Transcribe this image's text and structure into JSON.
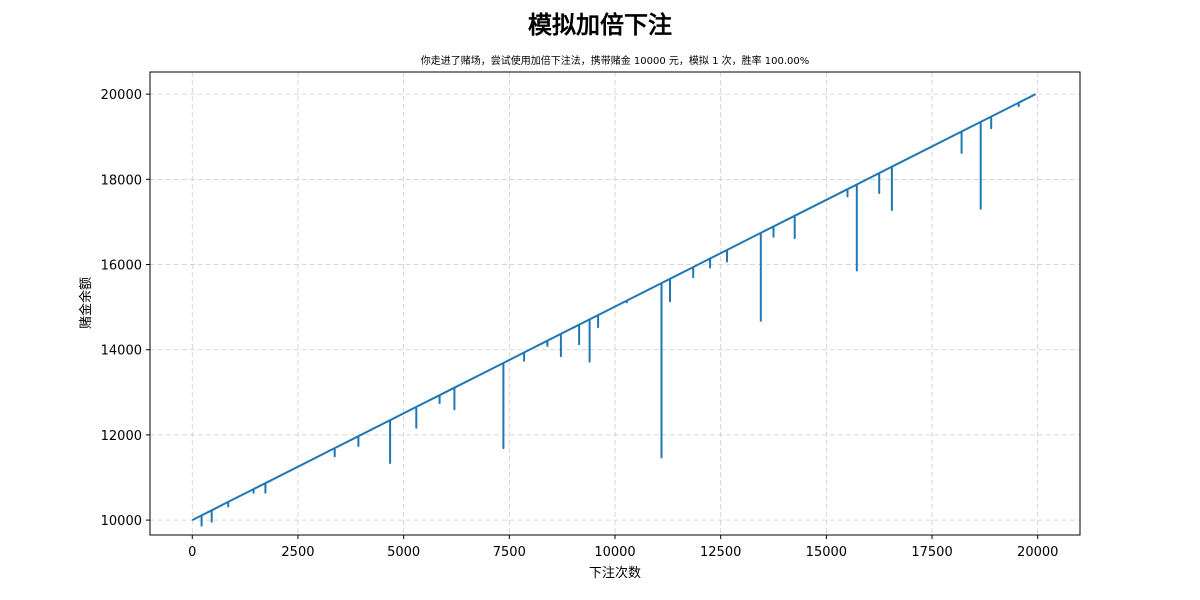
{
  "chart_data": {
    "type": "line",
    "title": "模拟加倍下注",
    "subtitle": "你走进了赌场，尝试使用加倍下注法，携带赌金 10000 元，模拟 1 次，胜率 100.00%",
    "xlabel": "下注次数",
    "ylabel": "赌金余额",
    "xlim": [
      -1000,
      21000
    ],
    "ylim": [
      9650,
      20520
    ],
    "x_ticks": [
      0,
      2500,
      5000,
      7500,
      10000,
      12500,
      15000,
      17500,
      20000
    ],
    "y_ticks": [
      10000,
      12000,
      14000,
      16000,
      18000,
      20000
    ],
    "grid": true,
    "series": [
      {
        "color": "#1f77b4",
        "trend": {
          "x": [
            0,
            19950
          ],
          "y": [
            10000,
            20000
          ]
        },
        "dips": [
          {
            "x": 220,
            "y": 9870
          },
          {
            "x": 460,
            "y": 9960
          },
          {
            "x": 850,
            "y": 10320
          },
          {
            "x": 1450,
            "y": 10640
          },
          {
            "x": 1730,
            "y": 10640
          },
          {
            "x": 3370,
            "y": 11500
          },
          {
            "x": 3930,
            "y": 11740
          },
          {
            "x": 4680,
            "y": 11340
          },
          {
            "x": 5300,
            "y": 12170
          },
          {
            "x": 5850,
            "y": 12750
          },
          {
            "x": 6200,
            "y": 12600
          },
          {
            "x": 7360,
            "y": 11690
          },
          {
            "x": 7850,
            "y": 13740
          },
          {
            "x": 8400,
            "y": 14090
          },
          {
            "x": 8720,
            "y": 13850
          },
          {
            "x": 9150,
            "y": 14130
          },
          {
            "x": 9400,
            "y": 13720
          },
          {
            "x": 9600,
            "y": 14530
          },
          {
            "x": 10280,
            "y": 15110
          },
          {
            "x": 11100,
            "y": 11470
          },
          {
            "x": 11300,
            "y": 15140
          },
          {
            "x": 11850,
            "y": 15700
          },
          {
            "x": 12250,
            "y": 15930
          },
          {
            "x": 12650,
            "y": 16070
          },
          {
            "x": 13450,
            "y": 14680
          },
          {
            "x": 13750,
            "y": 16650
          },
          {
            "x": 14250,
            "y": 16620
          },
          {
            "x": 15500,
            "y": 17600
          },
          {
            "x": 15720,
            "y": 15860
          },
          {
            "x": 16250,
            "y": 17680
          },
          {
            "x": 16550,
            "y": 17280
          },
          {
            "x": 18200,
            "y": 18620
          },
          {
            "x": 18650,
            "y": 17310
          },
          {
            "x": 18900,
            "y": 19200
          },
          {
            "x": 19550,
            "y": 19720
          }
        ]
      }
    ]
  }
}
